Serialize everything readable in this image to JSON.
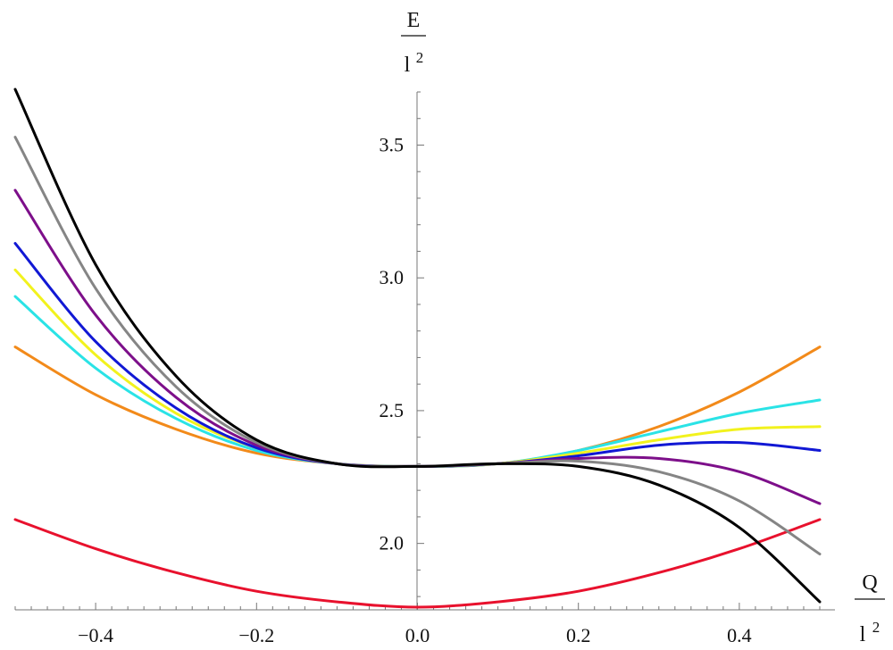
{
  "chart_data": {
    "type": "line",
    "xlabel": {
      "num": "Q",
      "den": "l",
      "exp": "2"
    },
    "ylabel": {
      "num": "E",
      "den": "l",
      "exp": "2"
    },
    "xlim": [
      -0.5,
      0.5
    ],
    "ylim": [
      1.75,
      3.7
    ],
    "xticks": [
      -0.4,
      -0.2,
      0.0,
      0.2,
      0.4
    ],
    "xtick_labels": [
      "−0.4",
      "−0.2",
      "0.0",
      "0.2",
      "0.4"
    ],
    "yticks": [
      2.0,
      2.5,
      3.0,
      3.5
    ],
    "ytick_labels": [
      "2.0",
      "2.5",
      "3.0",
      "3.5"
    ],
    "grid": false,
    "series": [
      {
        "color": "#e8112d",
        "x": [
          -0.5,
          -0.4,
          -0.3,
          -0.2,
          -0.1,
          0.0,
          0.1,
          0.2,
          0.3,
          0.4,
          0.5
        ],
        "y": [
          2.09,
          1.98,
          1.89,
          1.82,
          1.78,
          1.76,
          1.78,
          1.82,
          1.89,
          1.98,
          2.09
        ]
      },
      {
        "color": "#f28a1a",
        "x": [
          -0.5,
          -0.4,
          -0.3,
          -0.2,
          -0.1,
          0.0,
          0.1,
          0.2,
          0.3,
          0.4,
          0.5
        ],
        "y": [
          2.74,
          2.56,
          2.43,
          2.34,
          2.3,
          2.29,
          2.3,
          2.35,
          2.44,
          2.57,
          2.74
        ]
      },
      {
        "color": "#2ae3e6",
        "x": [
          -0.5,
          -0.4,
          -0.3,
          -0.2,
          -0.1,
          0.0,
          0.1,
          0.2,
          0.3,
          0.4,
          0.5
        ],
        "y": [
          2.93,
          2.66,
          2.47,
          2.35,
          2.3,
          2.29,
          2.3,
          2.35,
          2.42,
          2.49,
          2.54
        ]
      },
      {
        "color": "#f2f21d",
        "x": [
          -0.5,
          -0.4,
          -0.3,
          -0.2,
          -0.1,
          0.0,
          0.1,
          0.2,
          0.3,
          0.4,
          0.5
        ],
        "y": [
          3.03,
          2.71,
          2.49,
          2.36,
          2.3,
          2.29,
          2.3,
          2.34,
          2.39,
          2.43,
          2.44
        ]
      },
      {
        "color": "#1118d4",
        "x": [
          -0.5,
          -0.4,
          -0.3,
          -0.2,
          -0.1,
          0.0,
          0.1,
          0.2,
          0.3,
          0.4,
          0.5
        ],
        "y": [
          3.13,
          2.76,
          2.51,
          2.36,
          2.3,
          2.29,
          2.3,
          2.33,
          2.37,
          2.38,
          2.35
        ]
      },
      {
        "color": "#7d0f8a",
        "x": [
          -0.5,
          -0.4,
          -0.3,
          -0.2,
          -0.1,
          0.0,
          0.1,
          0.2,
          0.3,
          0.4,
          0.5
        ],
        "y": [
          3.33,
          2.86,
          2.55,
          2.37,
          2.3,
          2.29,
          2.3,
          2.32,
          2.32,
          2.27,
          2.15
        ]
      },
      {
        "color": "#858585",
        "x": [
          -0.5,
          -0.4,
          -0.3,
          -0.2,
          -0.1,
          0.0,
          0.1,
          0.2,
          0.3,
          0.4,
          0.5
        ],
        "y": [
          3.53,
          2.96,
          2.59,
          2.38,
          2.3,
          2.29,
          2.3,
          2.31,
          2.27,
          2.16,
          1.96
        ]
      },
      {
        "color": "#000000",
        "x": [
          -0.5,
          -0.4,
          -0.3,
          -0.2,
          -0.1,
          0.0,
          0.1,
          0.2,
          0.3,
          0.4,
          0.5
        ],
        "y": [
          3.71,
          3.05,
          2.63,
          2.39,
          2.3,
          2.29,
          2.3,
          2.29,
          2.22,
          2.06,
          1.78
        ]
      }
    ]
  }
}
